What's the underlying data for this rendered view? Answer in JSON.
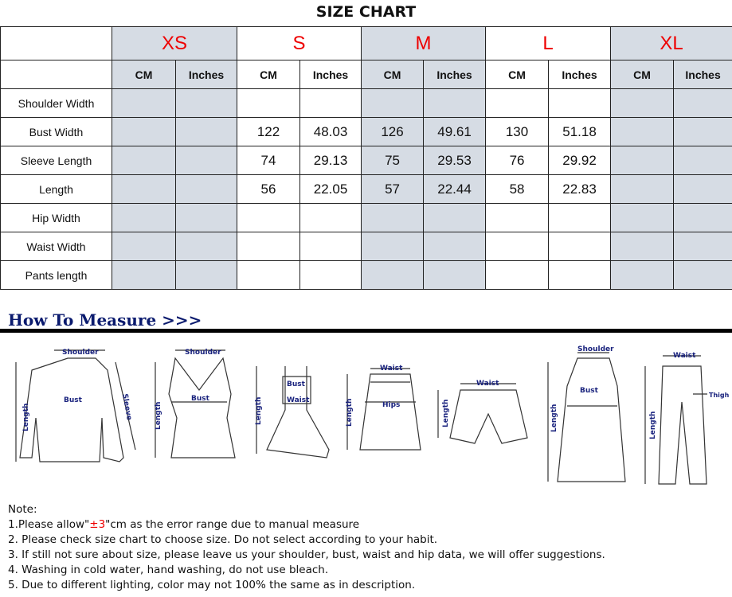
{
  "title": "SIZE CHART",
  "sizes": [
    "XS",
    "S",
    "M",
    "L",
    "XL"
  ],
  "units": [
    "CM",
    "Inches"
  ],
  "shaded_color": "#d6dce4",
  "size_color": "#e00000",
  "rows": [
    {
      "label": "Shoulder Width",
      "values": [
        "",
        "",
        "",
        "",
        "",
        "",
        "",
        "",
        "",
        ""
      ]
    },
    {
      "label": "Bust Width",
      "values": [
        "",
        "",
        "122",
        "48.03",
        "126",
        "49.61",
        "130",
        "51.18",
        "",
        ""
      ]
    },
    {
      "label": "Sleeve Length",
      "values": [
        "",
        "",
        "74",
        "29.13",
        "75",
        "29.53",
        "76",
        "29.92",
        "",
        ""
      ]
    },
    {
      "label": "Length",
      "values": [
        "",
        "",
        "56",
        "22.05",
        "57",
        "22.44",
        "58",
        "22.83",
        "",
        ""
      ]
    },
    {
      "label": "Hip Width",
      "values": [
        "",
        "",
        "",
        "",
        "",
        "",
        "",
        "",
        "",
        ""
      ]
    },
    {
      "label": "Waist Width",
      "values": [
        "",
        "",
        "",
        "",
        "",
        "",
        "",
        "",
        "",
        ""
      ]
    },
    {
      "label": "Pants length",
      "values": [
        "",
        "",
        "",
        "",
        "",
        "",
        "",
        "",
        "",
        ""
      ]
    }
  ],
  "how_to_measure": "How To Measure >>>",
  "diagram_labels": {
    "shoulder": "Shoulder",
    "bust": "Bust",
    "sleeve": "Sleeve",
    "length": "Length",
    "waist": "Waist",
    "hips": "Hips",
    "thigh": "Thigh"
  },
  "notes": {
    "heading": "Note:",
    "n1_pre": "1.Please allow\"",
    "n1_red": "±3",
    "n1_post": "\"cm as the error range due to manual measure",
    "n2": "2. Please check size chart to choose size. Do not select according to your habit.",
    "n3": "3. If still not sure about size, please leave us your shoulder, bust, waist and hip data, we will offer suggestions.",
    "n4": "4. Washing in cold water, hand washing, do not use bleach.",
    "n5": "5. Due to different lighting, color may not 100% the same as in description."
  }
}
